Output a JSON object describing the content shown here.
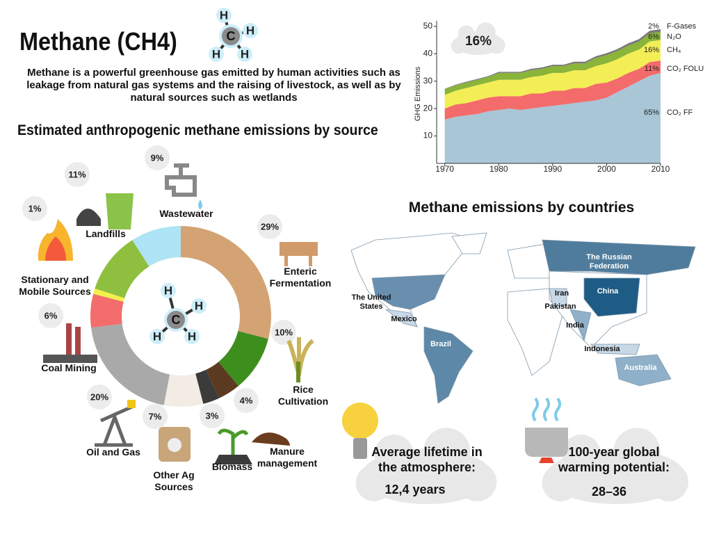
{
  "header": {
    "title": "Methane (CH4)",
    "description": "Methane is a powerful greenhouse gas emitted by human activities such as leakage from natural gas systems and the raising of livestock, as well as by natural sources such as wetlands"
  },
  "molecule": {
    "center": "C",
    "atoms": [
      "H",
      "H",
      "H",
      "H"
    ]
  },
  "chart_data": [
    {
      "type": "donut",
      "title": "Estimated anthropogenic methane emissions by source",
      "categories": [
        "Enteric Fermentation",
        "Rice Cultivation",
        "Manure management",
        "Biomass",
        "Other Ag Sources",
        "Oil and Gas",
        "Coal Mining",
        "Stationary and Mobile Sources",
        "Landfills",
        "Wastewater"
      ],
      "values": [
        29,
        10,
        4,
        3,
        7,
        20,
        6,
        1,
        11,
        9
      ],
      "value_labels": [
        "29%",
        "10%",
        "4%",
        "3%",
        "7%",
        "20%",
        "6%",
        "1%",
        "11%",
        "9%"
      ],
      "colors": [
        "#d4a373",
        "#3e8e1e",
        "#5c3a21",
        "#3b3b3b",
        "#f3ece4",
        "#a9a9a9",
        "#f36d6d",
        "#f3f04a",
        "#8fbf3f",
        "#aee4f5"
      ]
    },
    {
      "type": "area",
      "stacked": true,
      "ylabel": "GHG Emissions",
      "callout": "16%",
      "x": [
        1970,
        1972,
        1974,
        1976,
        1978,
        1980,
        1982,
        1984,
        1986,
        1988,
        1990,
        1992,
        1994,
        1996,
        1998,
        2000,
        2002,
        2004,
        2006,
        2008,
        2010
      ],
      "xlim": [
        1968.5,
        2010
      ],
      "xticks": [
        1970,
        1980,
        1990,
        2000,
        2010
      ],
      "ylim": [
        0,
        52
      ],
      "yticks": [
        10,
        20,
        30,
        40,
        50
      ],
      "series": [
        {
          "name": "CO₂ FF",
          "share": "65%",
          "color": "#a9c6d6",
          "values": [
            16,
            17,
            17.5,
            18,
            19,
            19.5,
            20,
            19.5,
            20,
            20.5,
            21,
            21.5,
            22,
            22.5,
            23,
            24,
            26,
            28,
            30,
            32,
            33
          ]
        },
        {
          "name": "CO₂ FOLU",
          "share": "11%",
          "color": "#f46b6b",
          "values": [
            4,
            4.5,
            4.5,
            5,
            5,
            5,
            4.5,
            5,
            5.5,
            5,
            5.5,
            5,
            5.5,
            5,
            6,
            5.5,
            5,
            5,
            4.5,
            5,
            4.5
          ]
        },
        {
          "name": "CH₄",
          "share": "16%",
          "color": "#f3ee55",
          "values": [
            5,
            5,
            5.5,
            5.5,
            5.5,
            6,
            6,
            6,
            6,
            6.5,
            6.5,
            6.5,
            6.5,
            6.5,
            6.5,
            7,
            7,
            7,
            7,
            7.5,
            7.5
          ]
        },
        {
          "name": "N₂O",
          "share": "6%",
          "color": "#8ab43a",
          "values": [
            2,
            2,
            2,
            2,
            2,
            2.5,
            2.5,
            2.5,
            2.5,
            2.5,
            2.5,
            2.5,
            2.5,
            2.5,
            3,
            3,
            3,
            3,
            3,
            3,
            3
          ]
        },
        {
          "name": "F-Gases",
          "share": "2%",
          "color": "#777777",
          "values": [
            0.2,
            0.2,
            0.3,
            0.3,
            0.3,
            0.4,
            0.4,
            0.4,
            0.5,
            0.5,
            0.5,
            0.5,
            0.6,
            0.6,
            0.6,
            0.7,
            0.7,
            0.8,
            0.8,
            0.9,
            1
          ]
        }
      ]
    }
  ],
  "map": {
    "title": "Methane emissions by countries",
    "countries": [
      "The Russian Federation",
      "The United States",
      "Mexico",
      "Brazil",
      "Iran",
      "Pakistan",
      "China",
      "India",
      "Indonesia",
      "Australia"
    ]
  },
  "facts": [
    {
      "label": "Average lifetime in the atmosphere:",
      "value": "12,4 years"
    },
    {
      "label": "100-year global warming potential:",
      "value": "28–36"
    }
  ]
}
